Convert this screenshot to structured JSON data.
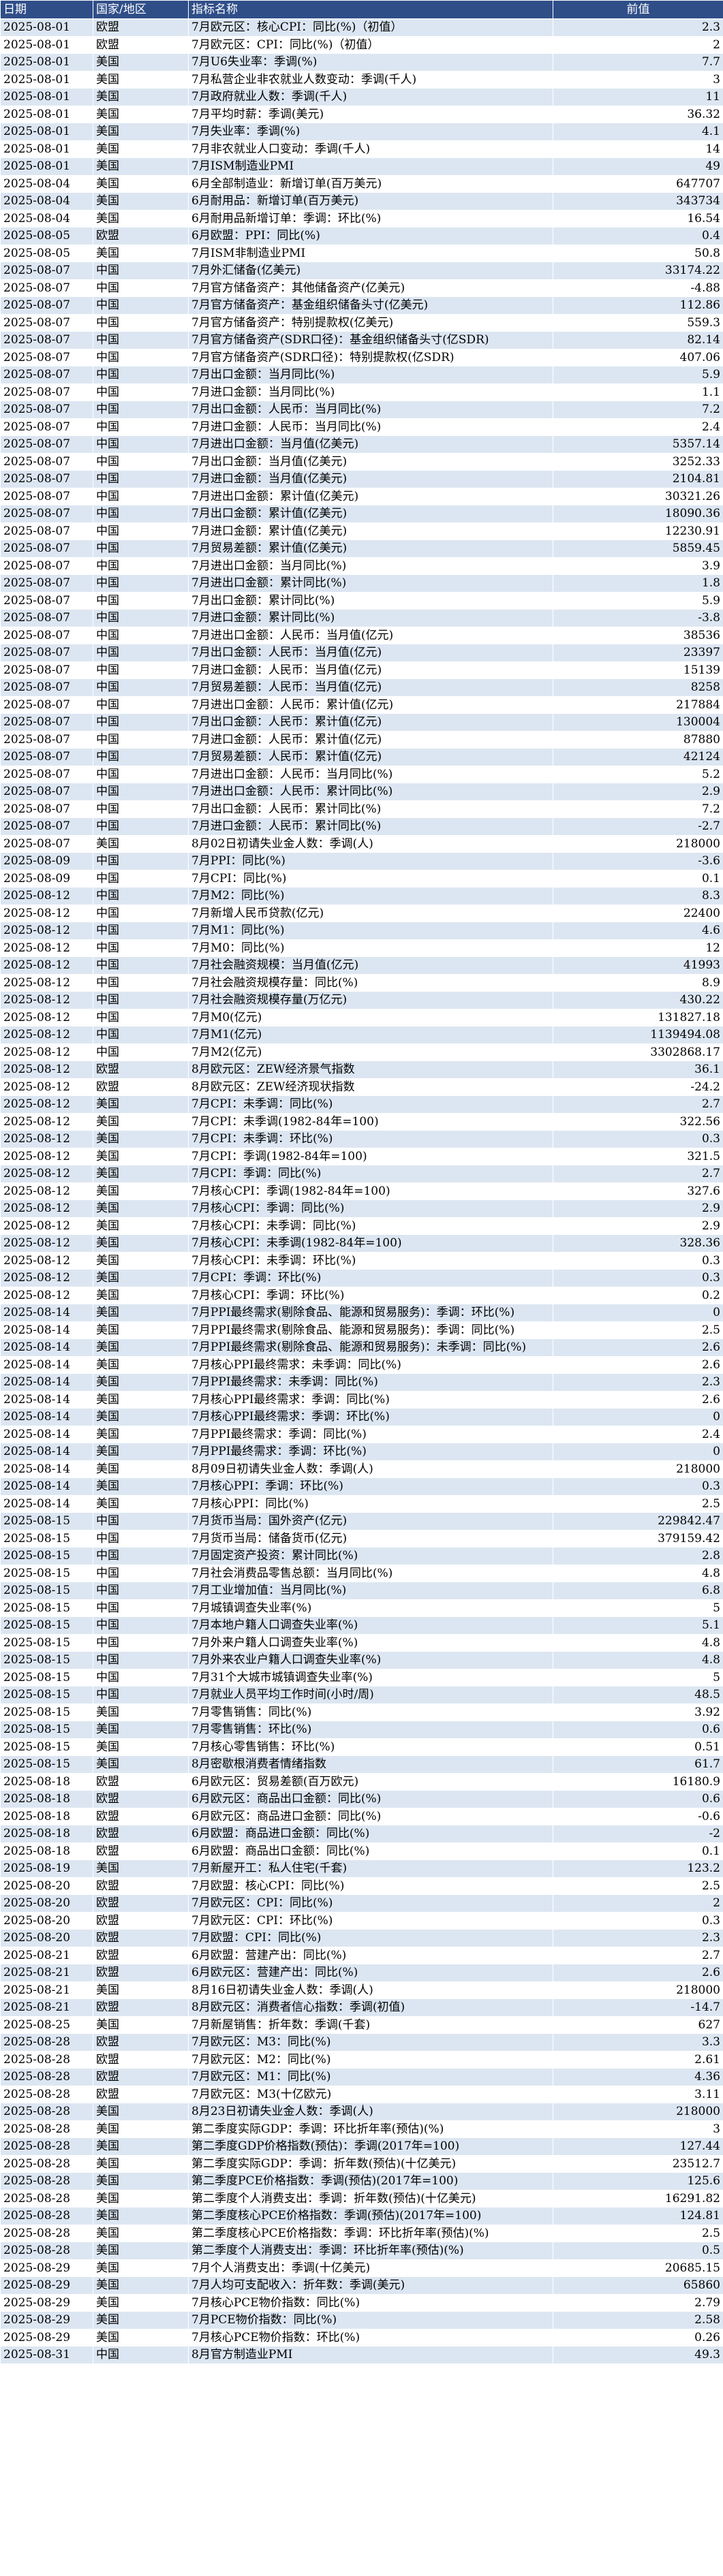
{
  "headers": [
    "日期",
    "国家/地区",
    "指标名称",
    "前值"
  ],
  "rows": [
    [
      "2025-08-01",
      "欧盟",
      "7月欧元区：核心CPI：同比(%)（初值）",
      "2.3"
    ],
    [
      "2025-08-01",
      "欧盟",
      "7月欧元区：CPI：同比(%)（初值）",
      "2"
    ],
    [
      "2025-08-01",
      "美国",
      "7月U6失业率：季调(%)",
      "7.7"
    ],
    [
      "2025-08-01",
      "美国",
      "7月私营企业非农就业人数变动：季调(千人)",
      "3"
    ],
    [
      "2025-08-01",
      "美国",
      "7月政府就业人数：季调(千人)",
      "11"
    ],
    [
      "2025-08-01",
      "美国",
      "7月平均时薪：季调(美元)",
      "36.32"
    ],
    [
      "2025-08-01",
      "美国",
      "7月失业率：季调(%)",
      "4.1"
    ],
    [
      "2025-08-01",
      "美国",
      "7月非农就业人口变动：季调(千人)",
      "14"
    ],
    [
      "2025-08-01",
      "美国",
      "7月ISM制造业PMI",
      "49"
    ],
    [
      "2025-08-04",
      "美国",
      "6月全部制造业：新增订单(百万美元)",
      "647707"
    ],
    [
      "2025-08-04",
      "美国",
      "6月耐用品：新增订单(百万美元)",
      "343734"
    ],
    [
      "2025-08-04",
      "美国",
      "6月耐用品新增订单：季调：环比(%)",
      "16.54"
    ],
    [
      "2025-08-05",
      "欧盟",
      "6月欧盟：PPI：同比(%)",
      "0.4"
    ],
    [
      "2025-08-05",
      "美国",
      "7月ISM非制造业PMI",
      "50.8"
    ],
    [
      "2025-08-07",
      "中国",
      "7月外汇储备(亿美元)",
      "33174.22"
    ],
    [
      "2025-08-07",
      "中国",
      "7月官方储备资产：其他储备资产(亿美元)",
      "-4.88"
    ],
    [
      "2025-08-07",
      "中国",
      "7月官方储备资产：基金组织储备头寸(亿美元)",
      "112.86"
    ],
    [
      "2025-08-07",
      "中国",
      "7月官方储备资产：特别提款权(亿美元)",
      "559.3"
    ],
    [
      "2025-08-07",
      "中国",
      "7月官方储备资产(SDR口径)：基金组织储备头寸(亿SDR)",
      "82.14"
    ],
    [
      "2025-08-07",
      "中国",
      "7月官方储备资产(SDR口径)：特别提款权(亿SDR)",
      "407.06"
    ],
    [
      "2025-08-07",
      "中国",
      "7月出口金额：当月同比(%)",
      "5.9"
    ],
    [
      "2025-08-07",
      "中国",
      "7月进口金额：当月同比(%)",
      "1.1"
    ],
    [
      "2025-08-07",
      "中国",
      "7月出口金额：人民币：当月同比(%)",
      "7.2"
    ],
    [
      "2025-08-07",
      "中国",
      "7月进口金额：人民币：当月同比(%)",
      "2.4"
    ],
    [
      "2025-08-07",
      "中国",
      "7月进出口金额：当月值(亿美元)",
      "5357.14"
    ],
    [
      "2025-08-07",
      "中国",
      "7月出口金额：当月值(亿美元)",
      "3252.33"
    ],
    [
      "2025-08-07",
      "中国",
      "7月进口金额：当月值(亿美元)",
      "2104.81"
    ],
    [
      "2025-08-07",
      "中国",
      "7月进出口金额：累计值(亿美元)",
      "30321.26"
    ],
    [
      "2025-08-07",
      "中国",
      "7月出口金额：累计值(亿美元)",
      "18090.36"
    ],
    [
      "2025-08-07",
      "中国",
      "7月进口金额：累计值(亿美元)",
      "12230.91"
    ],
    [
      "2025-08-07",
      "中国",
      "7月贸易差额：累计值(亿美元)",
      "5859.45"
    ],
    [
      "2025-08-07",
      "中国",
      "7月进出口金额：当月同比(%)",
      "3.9"
    ],
    [
      "2025-08-07",
      "中国",
      "7月进出口金额：累计同比(%)",
      "1.8"
    ],
    [
      "2025-08-07",
      "中国",
      "7月出口金额：累计同比(%)",
      "5.9"
    ],
    [
      "2025-08-07",
      "中国",
      "7月进口金额：累计同比(%)",
      "-3.8"
    ],
    [
      "2025-08-07",
      "中国",
      "7月进出口金额：人民币：当月值(亿元)",
      "38536"
    ],
    [
      "2025-08-07",
      "中国",
      "7月出口金额：人民币：当月值(亿元)",
      "23397"
    ],
    [
      "2025-08-07",
      "中国",
      "7月进口金额：人民币：当月值(亿元)",
      "15139"
    ],
    [
      "2025-08-07",
      "中国",
      "7月贸易差额：人民币：当月值(亿元)",
      "8258"
    ],
    [
      "2025-08-07",
      "中国",
      "7月进出口金额：人民币：累计值(亿元)",
      "217884"
    ],
    [
      "2025-08-07",
      "中国",
      "7月出口金额：人民币：累计值(亿元)",
      "130004"
    ],
    [
      "2025-08-07",
      "中国",
      "7月进口金额：人民币：累计值(亿元)",
      "87880"
    ],
    [
      "2025-08-07",
      "中国",
      "7月贸易差额：人民币：累计值(亿元)",
      "42124"
    ],
    [
      "2025-08-07",
      "中国",
      "7月进出口金额：人民币：当月同比(%)",
      "5.2"
    ],
    [
      "2025-08-07",
      "中国",
      "7月进出口金额：人民币：累计同比(%)",
      "2.9"
    ],
    [
      "2025-08-07",
      "中国",
      "7月出口金额：人民币：累计同比(%)",
      "7.2"
    ],
    [
      "2025-08-07",
      "中国",
      "7月进口金额：人民币：累计同比(%)",
      "-2.7"
    ],
    [
      "2025-08-07",
      "美国",
      "8月02日初请失业金人数：季调(人)",
      "218000"
    ],
    [
      "2025-08-09",
      "中国",
      "7月PPI：同比(%)",
      "-3.6"
    ],
    [
      "2025-08-09",
      "中国",
      "7月CPI：同比(%)",
      "0.1"
    ],
    [
      "2025-08-12",
      "中国",
      "7月M2：同比(%)",
      "8.3"
    ],
    [
      "2025-08-12",
      "中国",
      "7月新增人民币贷款(亿元)",
      "22400"
    ],
    [
      "2025-08-12",
      "中国",
      "7月M1：同比(%)",
      "4.6"
    ],
    [
      "2025-08-12",
      "中国",
      "7月M0：同比(%)",
      "12"
    ],
    [
      "2025-08-12",
      "中国",
      "7月社会融资规模：当月值(亿元)",
      "41993"
    ],
    [
      "2025-08-12",
      "中国",
      "7月社会融资规模存量：同比(%)",
      "8.9"
    ],
    [
      "2025-08-12",
      "中国",
      "7月社会融资规模存量(万亿元)",
      "430.22"
    ],
    [
      "2025-08-12",
      "中国",
      "7月M0(亿元)",
      "131827.18"
    ],
    [
      "2025-08-12",
      "中国",
      "7月M1(亿元)",
      "1139494.08"
    ],
    [
      "2025-08-12",
      "中国",
      "7月M2(亿元)",
      "3302868.17"
    ],
    [
      "2025-08-12",
      "欧盟",
      "8月欧元区：ZEW经济景气指数",
      "36.1"
    ],
    [
      "2025-08-12",
      "欧盟",
      "8月欧元区：ZEW经济现状指数",
      "-24.2"
    ],
    [
      "2025-08-12",
      "美国",
      "7月CPI：未季调：同比(%)",
      "2.7"
    ],
    [
      "2025-08-12",
      "美国",
      "7月CPI：未季调(1982-84年=100)",
      "322.56"
    ],
    [
      "2025-08-12",
      "美国",
      "7月CPI：未季调：环比(%)",
      "0.3"
    ],
    [
      "2025-08-12",
      "美国",
      "7月CPI：季调(1982-84年=100)",
      "321.5"
    ],
    [
      "2025-08-12",
      "美国",
      "7月CPI：季调：同比(%)",
      "2.7"
    ],
    [
      "2025-08-12",
      "美国",
      "7月核心CPI：季调(1982-84年=100)",
      "327.6"
    ],
    [
      "2025-08-12",
      "美国",
      "7月核心CPI：季调：同比(%)",
      "2.9"
    ],
    [
      "2025-08-12",
      "美国",
      "7月核心CPI：未季调：同比(%)",
      "2.9"
    ],
    [
      "2025-08-12",
      "美国",
      "7月核心CPI：未季调(1982-84年=100)",
      "328.36"
    ],
    [
      "2025-08-12",
      "美国",
      "7月核心CPI：未季调：环比(%)",
      "0.3"
    ],
    [
      "2025-08-12",
      "美国",
      "7月CPI：季调：环比(%)",
      "0.3"
    ],
    [
      "2025-08-12",
      "美国",
      "7月核心CPI：季调：环比(%)",
      "0.2"
    ],
    [
      "2025-08-14",
      "美国",
      "7月PPI最终需求(剔除食品、能源和贸易服务)：季调：环比(%)",
      "0"
    ],
    [
      "2025-08-14",
      "美国",
      "7月PPI最终需求(剔除食品、能源和贸易服务)：季调：同比(%)",
      "2.5"
    ],
    [
      "2025-08-14",
      "美国",
      "7月PPI最终需求(剔除食品、能源和贸易服务)：未季调：同比(%)",
      "2.6"
    ],
    [
      "2025-08-14",
      "美国",
      "7月核心PPI最终需求：未季调：同比(%)",
      "2.6"
    ],
    [
      "2025-08-14",
      "美国",
      "7月PPI最终需求：未季调：同比(%)",
      "2.3"
    ],
    [
      "2025-08-14",
      "美国",
      "7月核心PPI最终需求：季调：同比(%)",
      "2.6"
    ],
    [
      "2025-08-14",
      "美国",
      "7月核心PPI最终需求：季调：环比(%)",
      "0"
    ],
    [
      "2025-08-14",
      "美国",
      "7月PPI最终需求：季调：同比(%)",
      "2.4"
    ],
    [
      "2025-08-14",
      "美国",
      "7月PPI最终需求：季调：环比(%)",
      "0"
    ],
    [
      "2025-08-14",
      "美国",
      "8月09日初请失业金人数：季调(人)",
      "218000"
    ],
    [
      "2025-08-14",
      "美国",
      "7月核心PPI：季调：环比(%)",
      "0.3"
    ],
    [
      "2025-08-14",
      "美国",
      "7月核心PPI：同比(%)",
      "2.5"
    ],
    [
      "2025-08-15",
      "中国",
      "7月货币当局：国外资产(亿元)",
      "229842.47"
    ],
    [
      "2025-08-15",
      "中国",
      "7月货币当局：储备货币(亿元)",
      "379159.42"
    ],
    [
      "2025-08-15",
      "中国",
      "7月固定资产投资：累计同比(%)",
      "2.8"
    ],
    [
      "2025-08-15",
      "中国",
      "7月社会消费品零售总额：当月同比(%)",
      "4.8"
    ],
    [
      "2025-08-15",
      "中国",
      "7月工业增加值：当月同比(%)",
      "6.8"
    ],
    [
      "2025-08-15",
      "中国",
      "7月城镇调查失业率(%)",
      "5"
    ],
    [
      "2025-08-15",
      "中国",
      "7月本地户籍人口调查失业率(%)",
      "5.1"
    ],
    [
      "2025-08-15",
      "中国",
      "7月外来户籍人口调查失业率(%)",
      "4.8"
    ],
    [
      "2025-08-15",
      "中国",
      "7月外来农业户籍人口调查失业率(%)",
      "4.8"
    ],
    [
      "2025-08-15",
      "中国",
      "7月31个大城市城镇调查失业率(%)",
      "5"
    ],
    [
      "2025-08-15",
      "中国",
      "7月就业人员平均工作时间(小时/周)",
      "48.5"
    ],
    [
      "2025-08-15",
      "美国",
      "7月零售销售：同比(%)",
      "3.92"
    ],
    [
      "2025-08-15",
      "美国",
      "7月零售销售：环比(%)",
      "0.6"
    ],
    [
      "2025-08-15",
      "美国",
      "7月核心零售销售：环比(%)",
      "0.51"
    ],
    [
      "2025-08-15",
      "美国",
      "8月密歇根消费者情绪指数",
      "61.7"
    ],
    [
      "2025-08-18",
      "欧盟",
      "6月欧元区：贸易差额(百万欧元)",
      "16180.9"
    ],
    [
      "2025-08-18",
      "欧盟",
      "6月欧元区：商品出口金额：同比(%)",
      "0.6"
    ],
    [
      "2025-08-18",
      "欧盟",
      "6月欧元区：商品进口金额：同比(%)",
      "-0.6"
    ],
    [
      "2025-08-18",
      "欧盟",
      "6月欧盟：商品进口金额：同比(%)",
      "-2"
    ],
    [
      "2025-08-18",
      "欧盟",
      "6月欧盟：商品出口金额：同比(%)",
      "0.1"
    ],
    [
      "2025-08-19",
      "美国",
      "7月新屋开工：私人住宅(千套)",
      "123.2"
    ],
    [
      "2025-08-20",
      "欧盟",
      "7月欧盟：核心CPI：同比(%)",
      "2.5"
    ],
    [
      "2025-08-20",
      "欧盟",
      "7月欧元区：CPI：同比(%)",
      "2"
    ],
    [
      "2025-08-20",
      "欧盟",
      "7月欧元区：CPI：环比(%)",
      "0.3"
    ],
    [
      "2025-08-20",
      "欧盟",
      "7月欧盟：CPI：同比(%)",
      "2.3"
    ],
    [
      "2025-08-21",
      "欧盟",
      "6月欧盟：营建产出：同比(%)",
      "2.7"
    ],
    [
      "2025-08-21",
      "欧盟",
      "6月欧元区：营建产出：同比(%)",
      "2.6"
    ],
    [
      "2025-08-21",
      "美国",
      "8月16日初请失业金人数：季调(人)",
      "218000"
    ],
    [
      "2025-08-21",
      "欧盟",
      "8月欧元区：消费者信心指数：季调(初值)",
      "-14.7"
    ],
    [
      "2025-08-25",
      "美国",
      "7月新屋销售：折年数：季调(千套)",
      "627"
    ],
    [
      "2025-08-28",
      "欧盟",
      "7月欧元区：M3：同比(%)",
      "3.3"
    ],
    [
      "2025-08-28",
      "欧盟",
      "7月欧元区：M2：同比(%)",
      "2.61"
    ],
    [
      "2025-08-28",
      "欧盟",
      "7月欧元区：M1：同比(%)",
      "4.36"
    ],
    [
      "2025-08-28",
      "欧盟",
      "7月欧元区：M3(十亿欧元)",
      "3.11"
    ],
    [
      "2025-08-28",
      "美国",
      "8月23日初请失业金人数：季调(人)",
      "218000"
    ],
    [
      "2025-08-28",
      "美国",
      "第二季度实际GDP：季调：环比折年率(预估)(%)",
      "3"
    ],
    [
      "2025-08-28",
      "美国",
      "第二季度GDP价格指数(预估)：季调(2017年=100)",
      "127.44"
    ],
    [
      "2025-08-28",
      "美国",
      "第二季度实际GDP：季调：折年数(预估)(十亿美元)",
      "23512.7"
    ],
    [
      "2025-08-28",
      "美国",
      "第二季度PCE价格指数：季调(预估)(2017年=100)",
      "125.6"
    ],
    [
      "2025-08-28",
      "美国",
      "第二季度个人消费支出：季调：折年数(预估)(十亿美元)",
      "16291.82"
    ],
    [
      "2025-08-28",
      "美国",
      "第二季度核心PCE价格指数：季调(预估)(2017年=100)",
      "124.81"
    ],
    [
      "2025-08-28",
      "美国",
      "第二季度核心PCE价格指数：季调：环比折年率(预估)(%)",
      "2.5"
    ],
    [
      "2025-08-28",
      "美国",
      "第二季度个人消费支出：季调：环比折年率(预估)(%)",
      "0.5"
    ],
    [
      "2025-08-29",
      "美国",
      "7月个人消费支出：季调(十亿美元)",
      "20685.15"
    ],
    [
      "2025-08-29",
      "美国",
      "7月人均可支配收入：折年数：季调(美元)",
      "65860"
    ],
    [
      "2025-08-29",
      "美国",
      "7月核心PCE物价指数：同比(%)",
      "2.79"
    ],
    [
      "2025-08-29",
      "美国",
      "7月PCE物价指数：同比(%)",
      "2.58"
    ],
    [
      "2025-08-29",
      "美国",
      "7月核心PCE物价指数：环比(%)",
      "0.26"
    ],
    [
      "2025-08-31",
      "中国",
      "8月官方制造业PMI",
      "49.3"
    ]
  ]
}
